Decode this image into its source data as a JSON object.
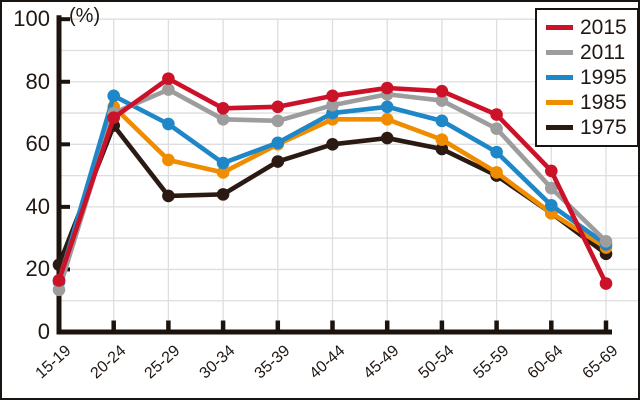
{
  "chart_data": {
    "type": "line",
    "title": "",
    "unit_label": "(%)",
    "xlabel": "",
    "ylabel": "(%)",
    "categories": [
      "15-19",
      "20-24",
      "25-29",
      "30-34",
      "35-39",
      "40-44",
      "45-49",
      "50-54",
      "55-59",
      "60-64",
      "65-69"
    ],
    "series": [
      {
        "name": "2015",
        "color": "#cb1228",
        "values": [
          16.5,
          68.5,
          81,
          71.5,
          72,
          75.5,
          78,
          77,
          69.5,
          51.5,
          15.5
        ]
      },
      {
        "name": "2011",
        "color": "#9d9d9e",
        "values": [
          13.5,
          70,
          77.5,
          68,
          67.5,
          72.5,
          76,
          74,
          65,
          46,
          29
        ]
      },
      {
        "name": "1995",
        "color": "#1e87c8",
        "values": [
          16,
          75.5,
          66.5,
          54,
          60.5,
          70,
          72,
          67.5,
          57.5,
          40.5,
          28
        ]
      },
      {
        "name": "1985",
        "color": "#f08c00",
        "values": [
          16.5,
          72,
          55,
          51,
          60,
          68,
          68,
          61.5,
          51,
          38,
          27
        ]
      },
      {
        "name": "1975",
        "color": "#2b1a12",
        "values": [
          21.5,
          66,
          43.5,
          44,
          54.5,
          60,
          62,
          58.5,
          50,
          38,
          25
        ]
      }
    ],
    "ylim": [
      0,
      100
    ],
    "yticks": [
      0,
      20,
      40,
      60,
      80,
      100
    ],
    "grid_step": 10,
    "grid": true,
    "legend_position": "top-right",
    "axis_color": "#1c130d",
    "grid_color": "#dedede",
    "background": "#ffffff"
  }
}
